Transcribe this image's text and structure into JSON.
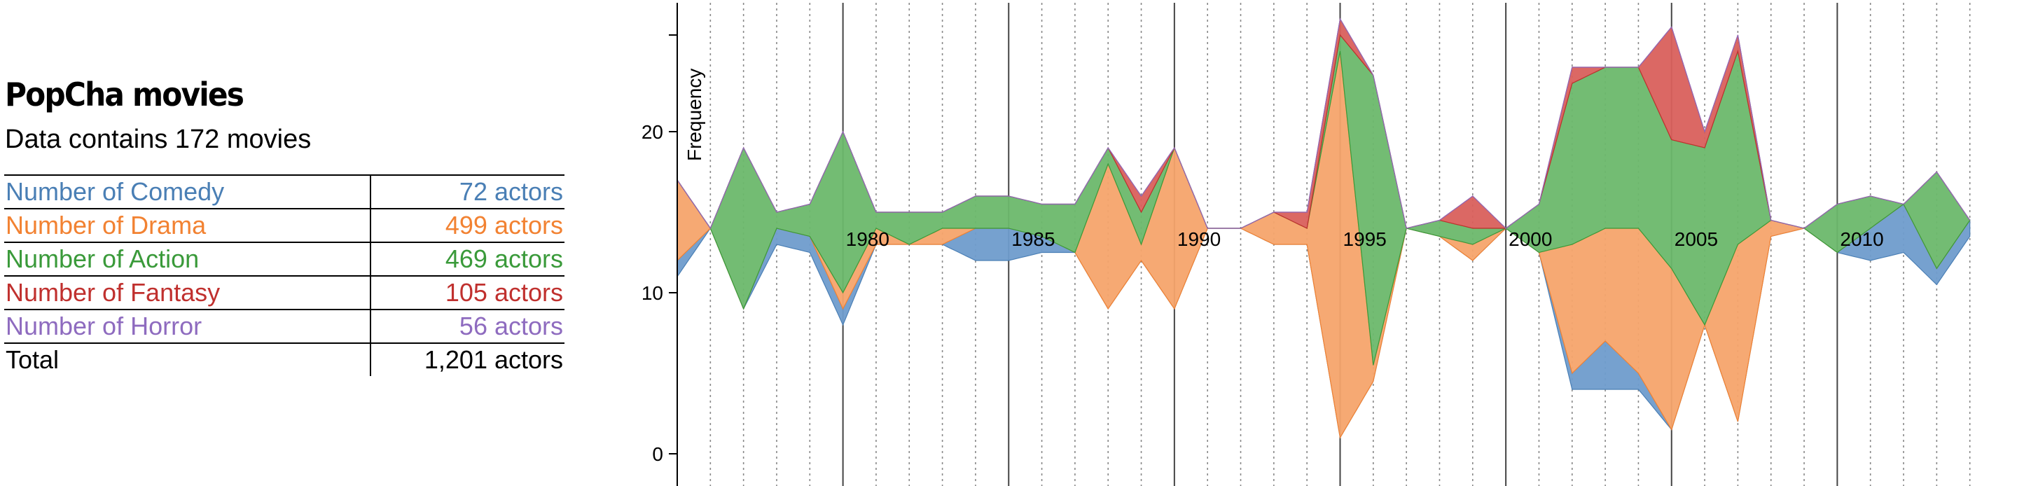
{
  "panel": {
    "title": "PopCha movies",
    "subtitle": "Data contains 172 movies",
    "rows": [
      {
        "label": "Number of Comedy",
        "value": "72 actors",
        "color": "#4a7fb5"
      },
      {
        "label": "Number of Drama",
        "value": "499 actors",
        "color": "#f28232"
      },
      {
        "label": "Number of Action",
        "value": "469 actors",
        "color": "#3a9a3a"
      },
      {
        "label": "Number of Fantasy",
        "value": "105 actors",
        "color": "#c0302e"
      },
      {
        "label": "Number of Horror",
        "value": "56 actors",
        "color": "#8e6bbf"
      },
      {
        "label": "Total",
        "value": "1,201 actors",
        "color": "#000000"
      }
    ]
  },
  "chart_data": {
    "type": "area",
    "ylabel": "Frequency",
    "ylim": [
      0,
      28
    ],
    "xlim": [
      1975,
      2015
    ],
    "yticks": [
      0,
      10,
      20
    ],
    "xtick_labels": [
      "1980",
      "1985",
      "1990",
      "1995",
      "2000",
      "2005",
      "2010"
    ],
    "x": [
      1975,
      1976,
      1977,
      1978,
      1979,
      1980,
      1981,
      1982,
      1983,
      1984,
      1985,
      1986,
      1987,
      1988,
      1989,
      1990,
      1991,
      1992,
      1993,
      1994,
      1995,
      1996,
      1997,
      1998,
      1999,
      2000,
      2001,
      2002,
      2003,
      2004,
      2005,
      2006,
      2007,
      2008,
      2009,
      2010,
      2011,
      2012,
      2013,
      2014
    ],
    "series": [
      {
        "name": "Comedy",
        "color": "#4a7fb5",
        "values": [
          1,
          0,
          0,
          1,
          1,
          1,
          0,
          0,
          0,
          2,
          2,
          1,
          0,
          0,
          0,
          0,
          0,
          0,
          0,
          0,
          0,
          0,
          0,
          0,
          0,
          0,
          0,
          1,
          3,
          1,
          0,
          0,
          0,
          0,
          0,
          0,
          2,
          3,
          1,
          1
        ]
      },
      {
        "name": "Drama",
        "color": "#f28232",
        "values": [
          5,
          0,
          0,
          0,
          0,
          1,
          1,
          0,
          1,
          0,
          0,
          0,
          0,
          9,
          1,
          10,
          0,
          0,
          2,
          1,
          24,
          1,
          0,
          0,
          1,
          0,
          0,
          8,
          7,
          9,
          10,
          0,
          11,
          1,
          0,
          0,
          0,
          0,
          0,
          0
        ]
      },
      {
        "name": "Action",
        "color": "#3a9a3a",
        "values": [
          0,
          0,
          10,
          1,
          2,
          10,
          1,
          2,
          1,
          2,
          2,
          2,
          3,
          1,
          2,
          0,
          0,
          0,
          0,
          0,
          1,
          18,
          0,
          1,
          1,
          0,
          3,
          10,
          10,
          10,
          8,
          11,
          12,
          0,
          0,
          3,
          2,
          0,
          6,
          0
        ]
      },
      {
        "name": "Fantasy",
        "color": "#c0302e",
        "values": [
          0,
          0,
          0,
          0,
          0,
          0,
          0,
          0,
          0,
          0,
          0,
          0,
          0,
          0,
          1,
          0,
          0,
          0,
          0,
          1,
          1,
          0,
          0,
          0,
          2,
          0,
          0,
          1,
          0,
          0,
          7,
          1,
          1,
          0,
          0,
          0,
          0,
          0,
          0,
          0
        ]
      },
      {
        "name": "Horror",
        "color": "#8e6bbf",
        "values": [
          0,
          0,
          0,
          0,
          0,
          0,
          0,
          0,
          0,
          0,
          0,
          0,
          0,
          0,
          0,
          0,
          0,
          0,
          0,
          0,
          0,
          0,
          0,
          0,
          0,
          0,
          0,
          0,
          0,
          0,
          0,
          0,
          0,
          0,
          0,
          0,
          0,
          0,
          0,
          0
        ]
      }
    ]
  }
}
